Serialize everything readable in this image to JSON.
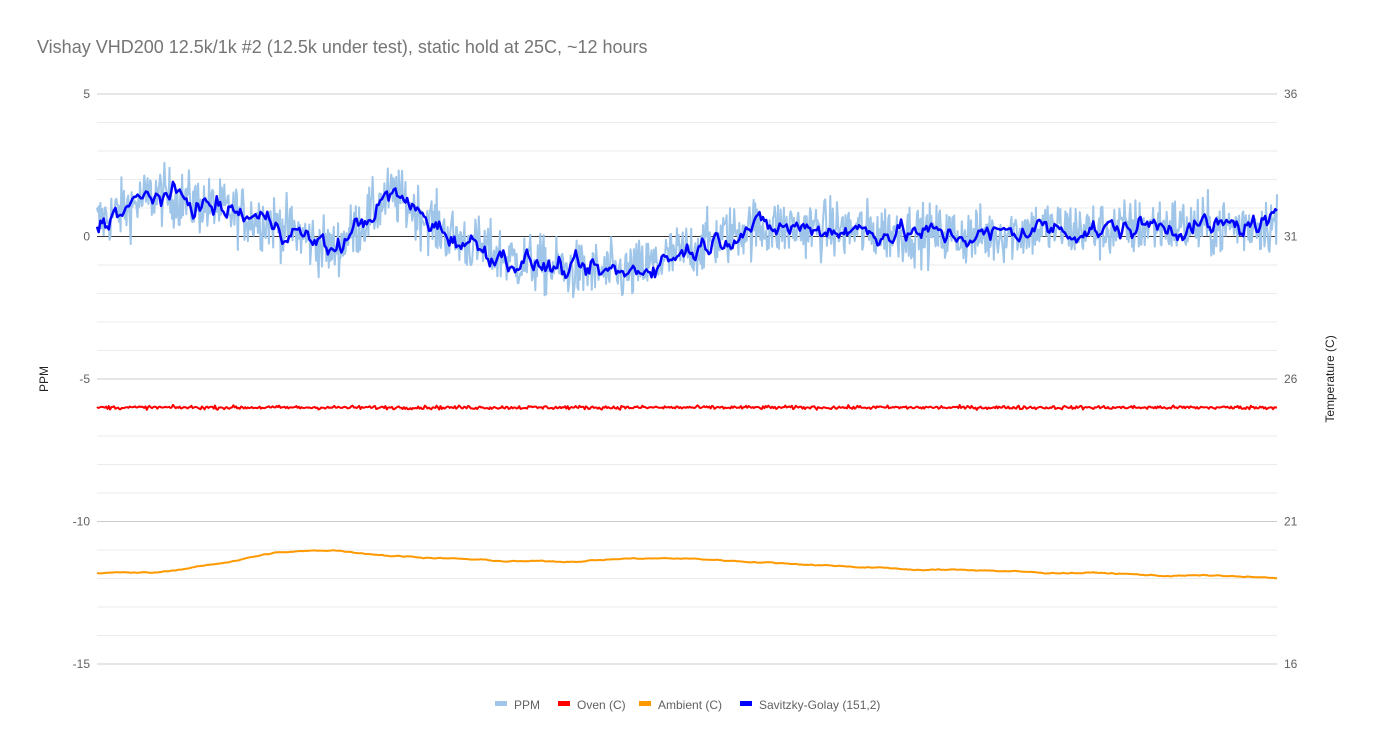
{
  "chart_data": {
    "type": "line",
    "title": "Vishay VHD200 12.5k/1k #2 (12.5k under test), static hold at 25C, ~12 hours",
    "ylabel": "PPM",
    "y2label": "Temperature (C)",
    "ylim": [
      -15,
      5
    ],
    "y2lim": [
      16,
      36
    ],
    "yticks": [
      "5",
      "0",
      "-5",
      "-10",
      "-15"
    ],
    "y2ticks": [
      "36",
      "31",
      "26",
      "21",
      "16"
    ],
    "grid": true,
    "legend_position": "bottom",
    "x": [
      0,
      0.05,
      0.1,
      0.15,
      0.2,
      0.25,
      0.3,
      0.35,
      0.4,
      0.45,
      0.5,
      0.55,
      0.6,
      0.65,
      0.7,
      0.75,
      0.8,
      0.85,
      0.9,
      0.95,
      1
    ],
    "series": [
      {
        "name": "PPM",
        "axis": "left",
        "color": "#9fc5e8",
        "values": [
          0.5,
          1.5,
          1.0,
          0.5,
          -0.5,
          1.5,
          0.0,
          -0.8,
          -1.2,
          -1.3,
          -0.5,
          0.3,
          0.3,
          0.2,
          0.1,
          0.0,
          0.3,
          0.2,
          0.4,
          0.3,
          0.5
        ],
        "noise": 1.3
      },
      {
        "name": "Oven (C)",
        "axis": "right",
        "color": "#ff0000",
        "values": [
          25.0,
          25.0,
          25.0,
          25.0,
          25.0,
          25.0,
          25.0,
          25.0,
          25.0,
          25.0,
          25.0,
          25.0,
          25.0,
          25.0,
          25.0,
          25.0,
          25.0,
          25.0,
          25.0,
          25.0,
          25.0
        ],
        "noise": 0.08
      },
      {
        "name": "Ambient (C)",
        "axis": "right",
        "color": "#ff9900",
        "values": [
          19.2,
          19.2,
          19.5,
          19.9,
          20.0,
          19.8,
          19.7,
          19.6,
          19.6,
          19.7,
          19.7,
          19.6,
          19.5,
          19.4,
          19.3,
          19.3,
          19.2,
          19.2,
          19.1,
          19.1,
          19.0
        ],
        "noise": 0.03
      },
      {
        "name": "Savitzky-Golay (151,2)",
        "axis": "left",
        "color": "#0000ff",
        "values": [
          0.5,
          1.5,
          1.0,
          0.5,
          -0.5,
          1.5,
          0.0,
          -0.8,
          -1.2,
          -1.3,
          -0.5,
          0.3,
          0.3,
          0.2,
          0.1,
          0.0,
          0.3,
          0.2,
          0.4,
          0.3,
          0.5
        ],
        "noise": 0.35
      }
    ]
  }
}
